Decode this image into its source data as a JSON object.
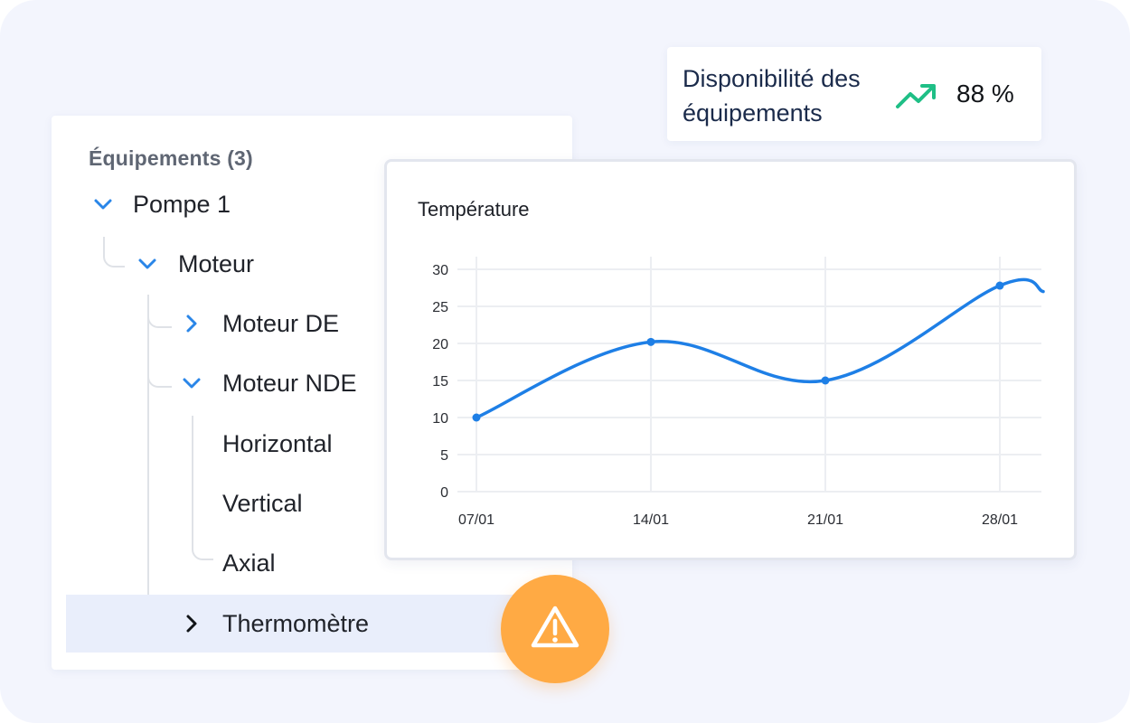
{
  "tree": {
    "header": "Équipements (3)",
    "items": [
      {
        "label": "Pompe 1",
        "chevron": "chevron-down-icon"
      },
      {
        "label": "Moteur",
        "chevron": "chevron-down-icon"
      },
      {
        "label": "Moteur DE",
        "chevron": "chevron-right-icon"
      },
      {
        "label": "Moteur NDE",
        "chevron": "chevron-down-icon"
      },
      {
        "label": "Horizontal"
      },
      {
        "label": "Vertical"
      },
      {
        "label": "Axial"
      },
      {
        "label": "Thermomètre",
        "chevron": "chevron-right-icon",
        "selected": true
      }
    ]
  },
  "kpi": {
    "label": "Disponibilité des équipements",
    "value": "88 %",
    "icon": "trending-up-icon",
    "icon_color": "#1fbf86"
  },
  "alert": {
    "icon": "warning-icon",
    "color": "#ffaa44"
  },
  "chart_data": {
    "type": "line",
    "title": "Température",
    "x": [
      "07/01",
      "14/01",
      "21/01",
      "28/01"
    ],
    "series": [
      {
        "values": [
          10,
          20.2,
          15,
          27.8
        ],
        "color": "#1e7fe6"
      }
    ],
    "ylim": [
      0,
      30
    ],
    "yticks": [
      "0",
      "5",
      "10",
      "15",
      "20",
      "25",
      "30"
    ],
    "grid": true
  },
  "colors": {
    "accent": "#2a86e8",
    "selected_row": "#e9eefb",
    "background": "#f3f5fd"
  }
}
